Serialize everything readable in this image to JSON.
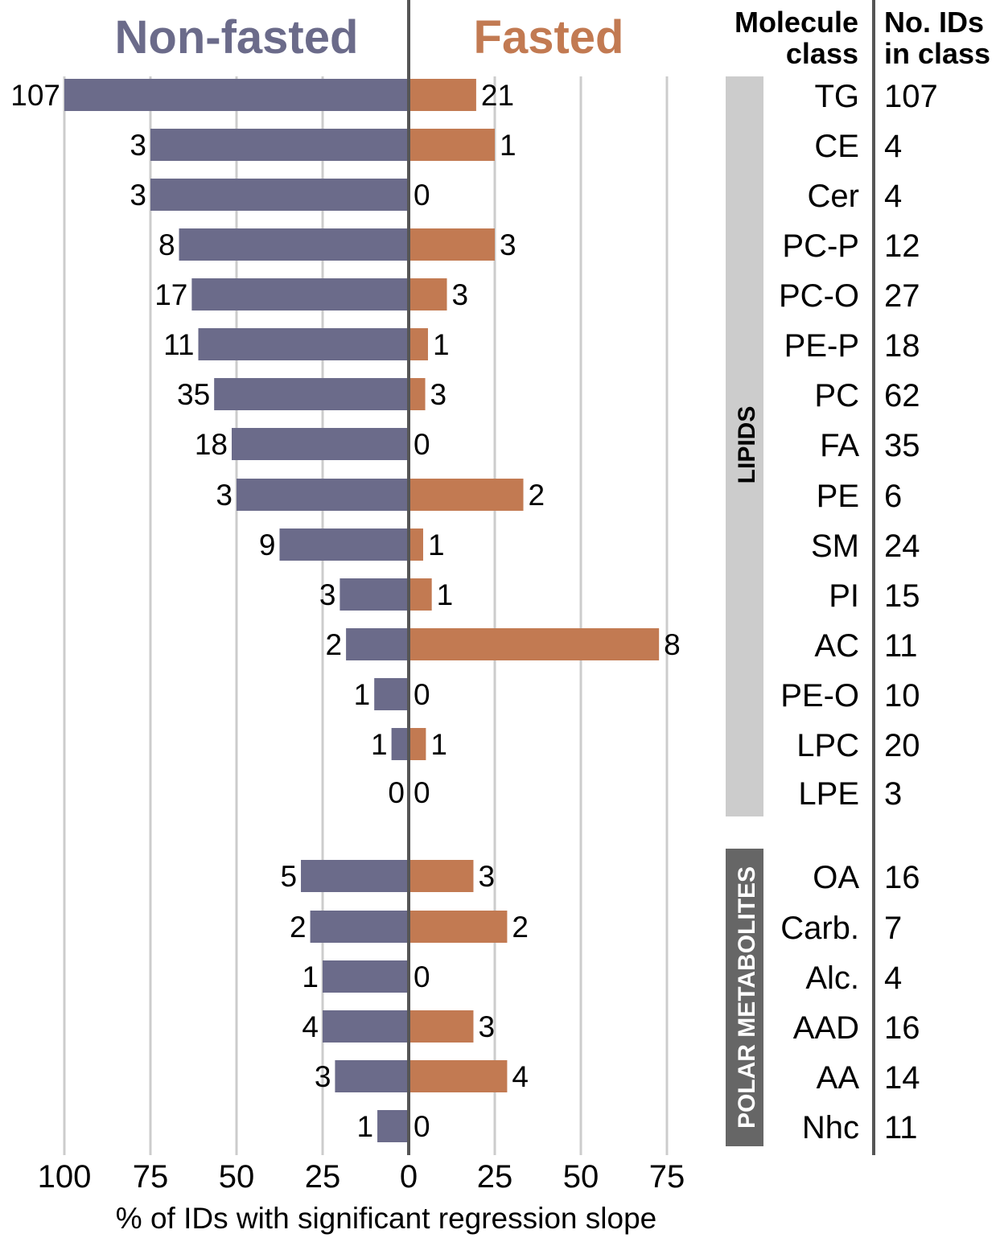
{
  "titles": {
    "left": "Non-fasted",
    "right": "Fasted"
  },
  "headers": {
    "class_line1": "Molecule",
    "class_line2": "class",
    "ids_line1": "No. IDs",
    "ids_line2": "in class"
  },
  "groups": [
    {
      "label": "LIPIDS",
      "color": "#cccccc",
      "text_color": "#000000"
    },
    {
      "label": "POLAR METABOLITES",
      "color": "#666666",
      "text_color": "#ffffff"
    }
  ],
  "colors": {
    "non_fasted": "#6b6b8a",
    "fasted": "#c27a52",
    "grid": "#cccccc",
    "axis": "#555555"
  },
  "chart_data": {
    "type": "bar",
    "orientation": "horizontal, diverging",
    "xlabel": "% of IDs with significant regression slope",
    "xticks_left": [
      "100",
      "75",
      "50",
      "25",
      "0"
    ],
    "xticks_right": [
      "25",
      "50",
      "75"
    ],
    "xlim": [
      -100,
      75
    ],
    "grid": true,
    "categories": [
      "TG",
      "CE",
      "Cer",
      "PC-P",
      "PC-O",
      "PE-P",
      "PC",
      "FA",
      "PE",
      "SM",
      "PI",
      "AC",
      "PE-O",
      "LPC",
      "LPE",
      "OA",
      "Carb.",
      "Alc.",
      "AAD",
      "AA",
      "Nhc"
    ],
    "ids_in_class": [
      107,
      4,
      4,
      12,
      27,
      18,
      62,
      35,
      6,
      24,
      15,
      11,
      10,
      20,
      3,
      16,
      7,
      4,
      16,
      14,
      11
    ],
    "series": [
      {
        "name": "Non-fasted",
        "values": [
          100,
          75,
          75,
          66.7,
          63,
          61.1,
          56.5,
          51.4,
          50,
          37.5,
          20,
          18.2,
          10,
          5,
          0,
          31.3,
          28.6,
          25,
          25,
          21.4,
          9.1
        ],
        "labels": [
          "107",
          "3",
          "3",
          "8",
          "17",
          "11",
          "35",
          "18",
          "3",
          "9",
          "3",
          "2",
          "1",
          "1",
          "0",
          "5",
          "2",
          "1",
          "4",
          "3",
          "1"
        ]
      },
      {
        "name": "Fasted",
        "values": [
          19.6,
          25,
          0,
          25,
          11.1,
          5.6,
          4.8,
          0,
          33.3,
          4.2,
          6.7,
          72.7,
          0,
          5,
          0,
          18.8,
          28.6,
          0,
          18.8,
          28.6,
          0
        ],
        "labels": [
          "21",
          "1",
          "0",
          "3",
          "3",
          "1",
          "3",
          "0",
          "2",
          "1",
          "1",
          "8",
          "0",
          "1",
          "0",
          "3",
          "2",
          "0",
          "3",
          "4",
          "0"
        ]
      }
    ]
  }
}
